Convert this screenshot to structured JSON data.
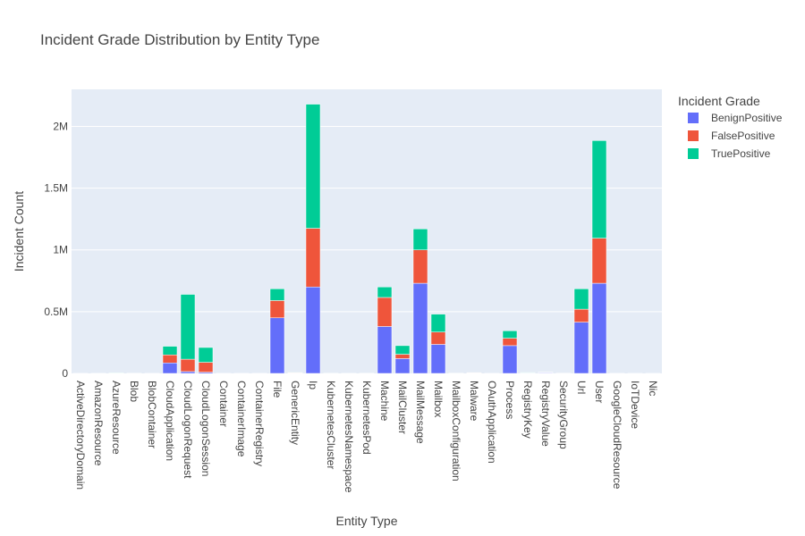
{
  "chart_data": {
    "type": "bar",
    "stacked": true,
    "title": "Incident Grade Distribution by Entity Type",
    "xlabel": "Entity Type",
    "ylabel": "Incident Count",
    "ylim": [
      0,
      2300000
    ],
    "y_ticks": [
      {
        "value": 0,
        "label": "0"
      },
      {
        "value": 500000,
        "label": "0.5M"
      },
      {
        "value": 1000000,
        "label": "1M"
      },
      {
        "value": 1500000,
        "label": "1.5M"
      },
      {
        "value": 2000000,
        "label": "2M"
      }
    ],
    "grid": true,
    "legend_title": "Incident Grade",
    "legend_position": "top-right",
    "categories": [
      "ActiveDirectoryDomain",
      "AmazonResource",
      "AzureResource",
      "Blob",
      "BlobContainer",
      "CloudApplication",
      "CloudLogonRequest",
      "CloudLogonSession",
      "Container",
      "ContainerImage",
      "ContainerRegistry",
      "File",
      "GenericEntity",
      "Ip",
      "KubernetesCluster",
      "KubernetesNamespace",
      "KubernetesPod",
      "Machine",
      "MailCluster",
      "MailMessage",
      "Mailbox",
      "MailboxConfiguration",
      "Malware",
      "OAuthApplication",
      "Process",
      "RegistryKey",
      "RegistryValue",
      "SecurityGroup",
      "Url",
      "User",
      "GoogleCloudResource",
      "IoTDevice",
      "Nic"
    ],
    "series": [
      {
        "name": "BenignPositive",
        "color": "#636efa",
        "values": [
          300,
          600,
          2000,
          1000,
          500,
          85000,
          15000,
          10000,
          500,
          500,
          500,
          450000,
          3000,
          700000,
          800,
          600,
          900,
          380000,
          120000,
          730000,
          235000,
          1200,
          3000,
          500,
          225000,
          4000,
          5000,
          1000,
          415000,
          730000,
          500,
          300,
          300
        ]
      },
      {
        "name": "FalsePositive",
        "color": "#ef553b",
        "values": [
          100,
          300,
          1000,
          500,
          200,
          65000,
          100000,
          80000,
          200,
          200,
          200,
          140000,
          2000,
          475000,
          300,
          300,
          300,
          235000,
          35000,
          270000,
          100000,
          500,
          1000,
          200,
          60000,
          2000,
          3000,
          600,
          105000,
          365000,
          200,
          100,
          100
        ]
      },
      {
        "name": "TruePositive",
        "color": "#00cc96",
        "values": [
          100,
          300,
          2000,
          500,
          300,
          70000,
          525000,
          120000,
          300,
          300,
          300,
          95000,
          3000,
          1005000,
          400,
          300,
          400,
          85000,
          70000,
          170000,
          145000,
          800,
          2000,
          300,
          60000,
          2000,
          2000,
          700,
          165000,
          790000,
          300,
          200,
          200
        ]
      }
    ]
  }
}
